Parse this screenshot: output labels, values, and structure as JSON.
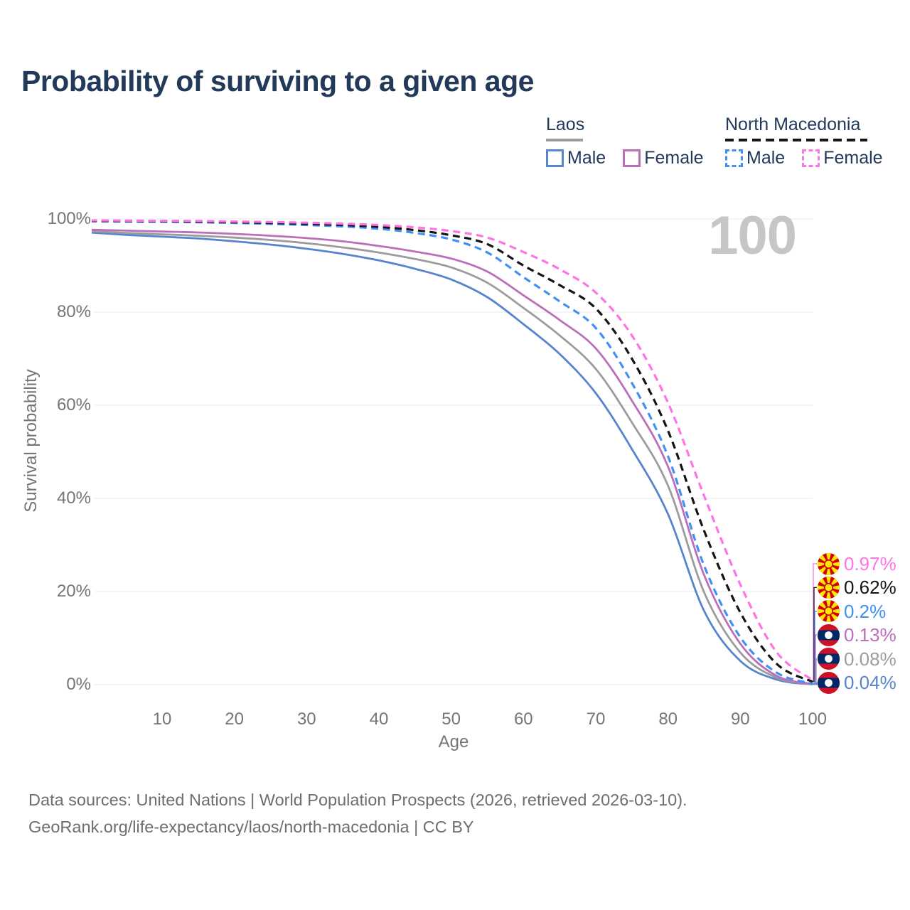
{
  "title": "Probability of surviving to a given age",
  "watermark": "100",
  "legend": {
    "groups": [
      {
        "label": "Laos",
        "line_style": "solid",
        "underline_color": "#9b9b9b",
        "items": [
          {
            "label": "Male",
            "color": "#5684cd"
          },
          {
            "label": "Female",
            "color": "#bb6fbb"
          }
        ]
      },
      {
        "label": "North Macedonia",
        "line_style": "dashed",
        "underline_color": "#161616",
        "items": [
          {
            "label": "Male",
            "color": "#4190f4"
          },
          {
            "label": "Female",
            "color": "#ff74e4"
          }
        ]
      }
    ]
  },
  "chart_data": {
    "type": "line",
    "title": "Probability of surviving to a given age",
    "xlabel": "Age",
    "ylabel": "Survival probability",
    "xlim": [
      0,
      100
    ],
    "ylim": [
      0,
      100
    ],
    "grid": "horizontal",
    "x_ticks": [
      10,
      20,
      30,
      40,
      50,
      60,
      70,
      80,
      90,
      100
    ],
    "y_ticks": [
      "0%",
      "20%",
      "40%",
      "60%",
      "80%",
      "100%"
    ],
    "ages": [
      0,
      5,
      10,
      15,
      20,
      25,
      30,
      35,
      40,
      45,
      50,
      55,
      60,
      65,
      70,
      75,
      80,
      85,
      90,
      95,
      100
    ],
    "series": [
      {
        "name": "North Macedonia Female",
        "country": "North Macedonia",
        "sex": "Female",
        "color": "#ff74e4",
        "dash": true,
        "flag": "north-macedonia",
        "end_label": "0.97%",
        "values": [
          99.7,
          99.65,
          99.6,
          99.55,
          99.45,
          99.35,
          99.2,
          99.0,
          98.7,
          98.2,
          97.4,
          96.0,
          92.9,
          89.2,
          84.2,
          75.0,
          60.5,
          40.5,
          21.5,
          7.0,
          0.97
        ]
      },
      {
        "name": "North Macedonia (both sexes)",
        "country": "North Macedonia",
        "sex": "Both",
        "color": "#141414",
        "dash": true,
        "flag": "north-macedonia",
        "end_label": "0.62%",
        "values": [
          99.6,
          99.55,
          99.5,
          99.4,
          99.3,
          99.15,
          98.95,
          98.7,
          98.3,
          97.6,
          96.5,
          94.6,
          90.0,
          85.8,
          80.8,
          70.0,
          54.5,
          33.0,
          15.5,
          4.5,
          0.62
        ]
      },
      {
        "name": "North Macedonia Male",
        "country": "North Macedonia",
        "sex": "Male",
        "color": "#4190f4",
        "dash": true,
        "flag": "north-macedonia",
        "end_label": "0.2%",
        "values": [
          99.5,
          99.45,
          99.4,
          99.3,
          99.15,
          98.95,
          98.7,
          98.4,
          97.9,
          97.0,
          95.6,
          92.8,
          87.5,
          82.3,
          76.6,
          64.8,
          49.0,
          25.5,
          10.2,
          2.6,
          0.2
        ]
      },
      {
        "name": "Laos Female",
        "country": "Laos",
        "sex": "Female",
        "color": "#bb6fbb",
        "dash": false,
        "flag": "laos",
        "end_label": "0.13%",
        "values": [
          97.7,
          97.5,
          97.3,
          97.1,
          96.8,
          96.4,
          95.9,
          95.2,
          94.2,
          93.0,
          91.5,
          88.7,
          83.6,
          78.3,
          72.2,
          61.0,
          46.8,
          23.5,
          8.8,
          1.9,
          0.13
        ]
      },
      {
        "name": "Laos (both sexes)",
        "country": "Laos",
        "sex": "Both",
        "color": "#9c9c9c",
        "dash": false,
        "flag": "laos",
        "end_label": "0.08%",
        "values": [
          97.4,
          97.0,
          96.7,
          96.4,
          96.0,
          95.5,
          94.8,
          93.9,
          92.8,
          91.4,
          89.6,
          86.3,
          80.9,
          75.0,
          67.8,
          56.3,
          42.7,
          19.8,
          6.9,
          1.5,
          0.08
        ]
      },
      {
        "name": "Laos Male",
        "country": "Laos",
        "sex": "Male",
        "color": "#5684cd",
        "dash": false,
        "flag": "laos",
        "end_label": "0.04%",
        "values": [
          97.1,
          96.6,
          96.2,
          95.8,
          95.2,
          94.5,
          93.6,
          92.5,
          91.1,
          89.3,
          87.0,
          83.2,
          77.4,
          71.0,
          62.6,
          50.6,
          36.6,
          15.8,
          5.1,
          1.1,
          0.04
        ]
      }
    ]
  },
  "footer": {
    "line1": "Data sources: United Nations | World Population Prospects (2026, retrieved 2026-03-10).",
    "line2": "GeoRank.org/life-expectancy/laos/north-macedonia | CC BY"
  }
}
